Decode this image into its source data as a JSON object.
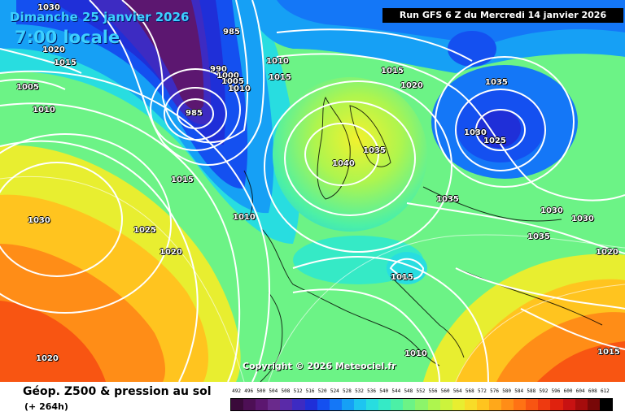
{
  "header": {
    "date": "Dimanche 25 janvier 2026",
    "time": "7:00 locale",
    "run": "Run GFS 6 Z du Mercredi 14 janvier 2026"
  },
  "footer": {
    "copyright": "Copyright © 2026 Meteociel.fr",
    "title": "Géop. Z500 & pression au sol",
    "lead": "(+ 264h)"
  },
  "pressure_labels": [
    {
      "id": "p1030-nw",
      "text": "1030"
    },
    {
      "id": "p1020-nw",
      "text": "1020"
    },
    {
      "id": "p1015-nw",
      "text": "1015"
    },
    {
      "id": "p1005-w",
      "text": "1005"
    },
    {
      "id": "p1010-w",
      "text": "1010"
    },
    {
      "id": "p985-n",
      "text": "985"
    },
    {
      "id": "p990-n",
      "text": "990"
    },
    {
      "id": "p1000-n",
      "text": "1000"
    },
    {
      "id": "p1005-n",
      "text": "1005"
    },
    {
      "id": "p1010-n",
      "text": "1010"
    },
    {
      "id": "p985-low",
      "text": "985"
    },
    {
      "id": "p1010-c",
      "text": "1010"
    },
    {
      "id": "p1015-c",
      "text": "1015"
    },
    {
      "id": "p1015-ne",
      "text": "1015"
    },
    {
      "id": "p1020-ne",
      "text": "1020"
    },
    {
      "id": "p1035-ne",
      "text": "1035"
    },
    {
      "id": "p1030-e",
      "text": "1030"
    },
    {
      "id": "p1025-e",
      "text": "1025"
    },
    {
      "id": "p1040-scand",
      "text": "1040"
    },
    {
      "id": "p1035-scand",
      "text": "1035"
    },
    {
      "id": "p1015-atl",
      "text": "1015"
    },
    {
      "id": "p1030-atl",
      "text": "1030"
    },
    {
      "id": "p1025-atl",
      "text": "1025"
    },
    {
      "id": "p1020-atl",
      "text": "1020"
    },
    {
      "id": "p1010-atl",
      "text": "1010"
    },
    {
      "id": "p1035-ru",
      "text": "1035"
    },
    {
      "id": "p1030-ru",
      "text": "1030"
    },
    {
      "id": "p1030-far-e",
      "text": "1030"
    },
    {
      "id": "p1035-ru2",
      "text": "1035"
    },
    {
      "id": "p1020-far-e",
      "text": "1020"
    },
    {
      "id": "p1015-balk",
      "text": "1015"
    },
    {
      "id": "p1020-sw",
      "text": "1020"
    },
    {
      "id": "p1010-med",
      "text": "1010"
    },
    {
      "id": "p1015-se",
      "text": "1015"
    },
    {
      "id": "p1030-top",
      "text": "1030"
    }
  ],
  "scale": {
    "ticks": [
      "492",
      "496",
      "500",
      "504",
      "508",
      "512",
      "516",
      "520",
      "524",
      "528",
      "532",
      "536",
      "540",
      "544",
      "548",
      "552",
      "556",
      "560",
      "564",
      "568",
      "572",
      "576",
      "580",
      "584",
      "588",
      "592",
      "596",
      "600",
      "604",
      "608",
      "612"
    ],
    "colors": [
      "#3a0a3a",
      "#4d0f55",
      "#5c1770",
      "#6a2a8c",
      "#5a2aa8",
      "#3d2bc2",
      "#1f2fd8",
      "#1450f0",
      "#1477f7",
      "#16a0f5",
      "#1ec5f0",
      "#28dde0",
      "#35eac6",
      "#4cf0a6",
      "#6cf386",
      "#8cf46a",
      "#aef54e",
      "#ccf33c",
      "#e8ee30",
      "#f8dc28",
      "#ffc41f",
      "#ffa81a",
      "#ff8d17",
      "#ff7214",
      "#f85512",
      "#ee3a10",
      "#e0220e",
      "#c81212",
      "#a50c0c",
      "#780808",
      "#000000"
    ]
  }
}
